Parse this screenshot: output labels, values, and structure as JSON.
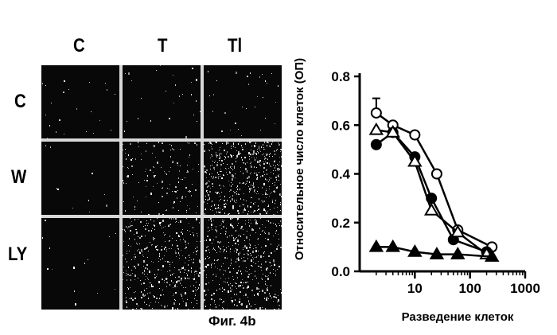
{
  "figure": {
    "caption": "Фиг. 4b",
    "grid": {
      "column_labels": [
        "C",
        "T",
        "Tl"
      ],
      "row_labels": [
        "C",
        "W",
        "LY"
      ]
    }
  },
  "chart_data": {
    "type": "line",
    "ylabel": "Относительное число клеток (ОП)",
    "xlabel": "Разведение клеток",
    "x_scale": "log",
    "xlim": [
      1,
      1000
    ],
    "ylim": [
      0,
      0.8
    ],
    "x_ticks": [
      10,
      100,
      1000
    ],
    "x_tick_labels": [
      "10",
      "100",
      "1000"
    ],
    "y_ticks": [
      0,
      0.2,
      0.4,
      0.6,
      0.8
    ],
    "y_tick_labels": [
      "0.0",
      "0.2",
      "0.4",
      "0.6",
      "0.8"
    ],
    "grid": false,
    "series": [
      {
        "marker": "open-circle",
        "x": [
          2,
          4,
          10,
          25,
          60,
          250
        ],
        "y": [
          0.65,
          0.6,
          0.56,
          0.4,
          0.17,
          0.1
        ],
        "error_bar_up": [
          0.06,
          0,
          0,
          0,
          0,
          0
        ]
      },
      {
        "marker": "filled-circle",
        "x": [
          2,
          4,
          10,
          20,
          50,
          200
        ],
        "y": [
          0.52,
          0.57,
          0.47,
          0.3,
          0.13,
          0.08
        ]
      },
      {
        "marker": "open-triangle",
        "x": [
          2,
          4,
          10,
          20,
          60,
          200
        ],
        "y": [
          0.58,
          0.57,
          0.45,
          0.25,
          0.16,
          0.07
        ]
      },
      {
        "marker": "filled-triangle",
        "x": [
          2,
          4,
          10,
          25,
          60,
          250
        ],
        "y": [
          0.1,
          0.1,
          0.08,
          0.07,
          0.07,
          0.06
        ]
      }
    ]
  }
}
